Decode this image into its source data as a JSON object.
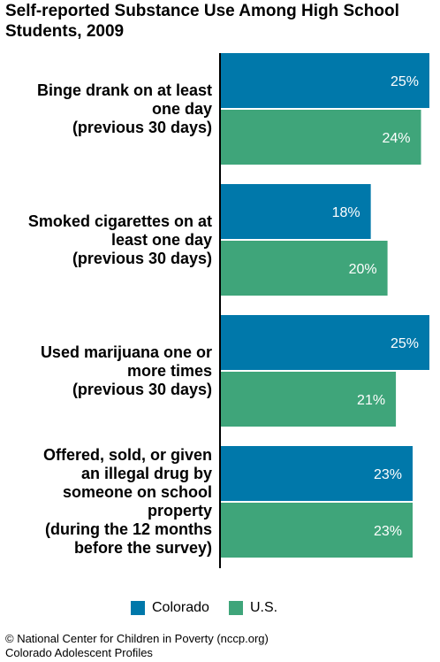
{
  "chart_data": {
    "type": "bar",
    "orientation": "horizontal",
    "title_lines": [
      "Self-reported Substance Use Among High School",
      "Students, 2009"
    ],
    "categories": [
      [
        "Binge drank on at least",
        "one day",
        "(previous 30 days)"
      ],
      [
        "Smoked cigarettes on at",
        "least one day",
        "(previous 30 days)"
      ],
      [
        "Used marijuana one or",
        "more times",
        "(previous 30 days)"
      ],
      [
        "Offered, sold, or given",
        "an illegal drug by",
        "someone on school",
        "property",
        "(during the 12 months",
        "before the survey)"
      ]
    ],
    "series": [
      {
        "name": "Colorado",
        "values": [
          25,
          18,
          25,
          23
        ],
        "labels": [
          "25%",
          "18%",
          "25%",
          "23%"
        ],
        "color": "#0078aa"
      },
      {
        "name": "U.S.",
        "values": [
          24,
          20,
          21,
          23
        ],
        "labels": [
          "24%",
          "20%",
          "21%",
          "23%"
        ],
        "color": "#3fa57a"
      }
    ],
    "unit": "%",
    "xlim": [
      0,
      25
    ],
    "grid": false,
    "legend_position": "bottom"
  },
  "source_lines": [
    "© National Center for Children in Poverty (nccp.org)",
    "Colorado Adolescent Profiles"
  ]
}
